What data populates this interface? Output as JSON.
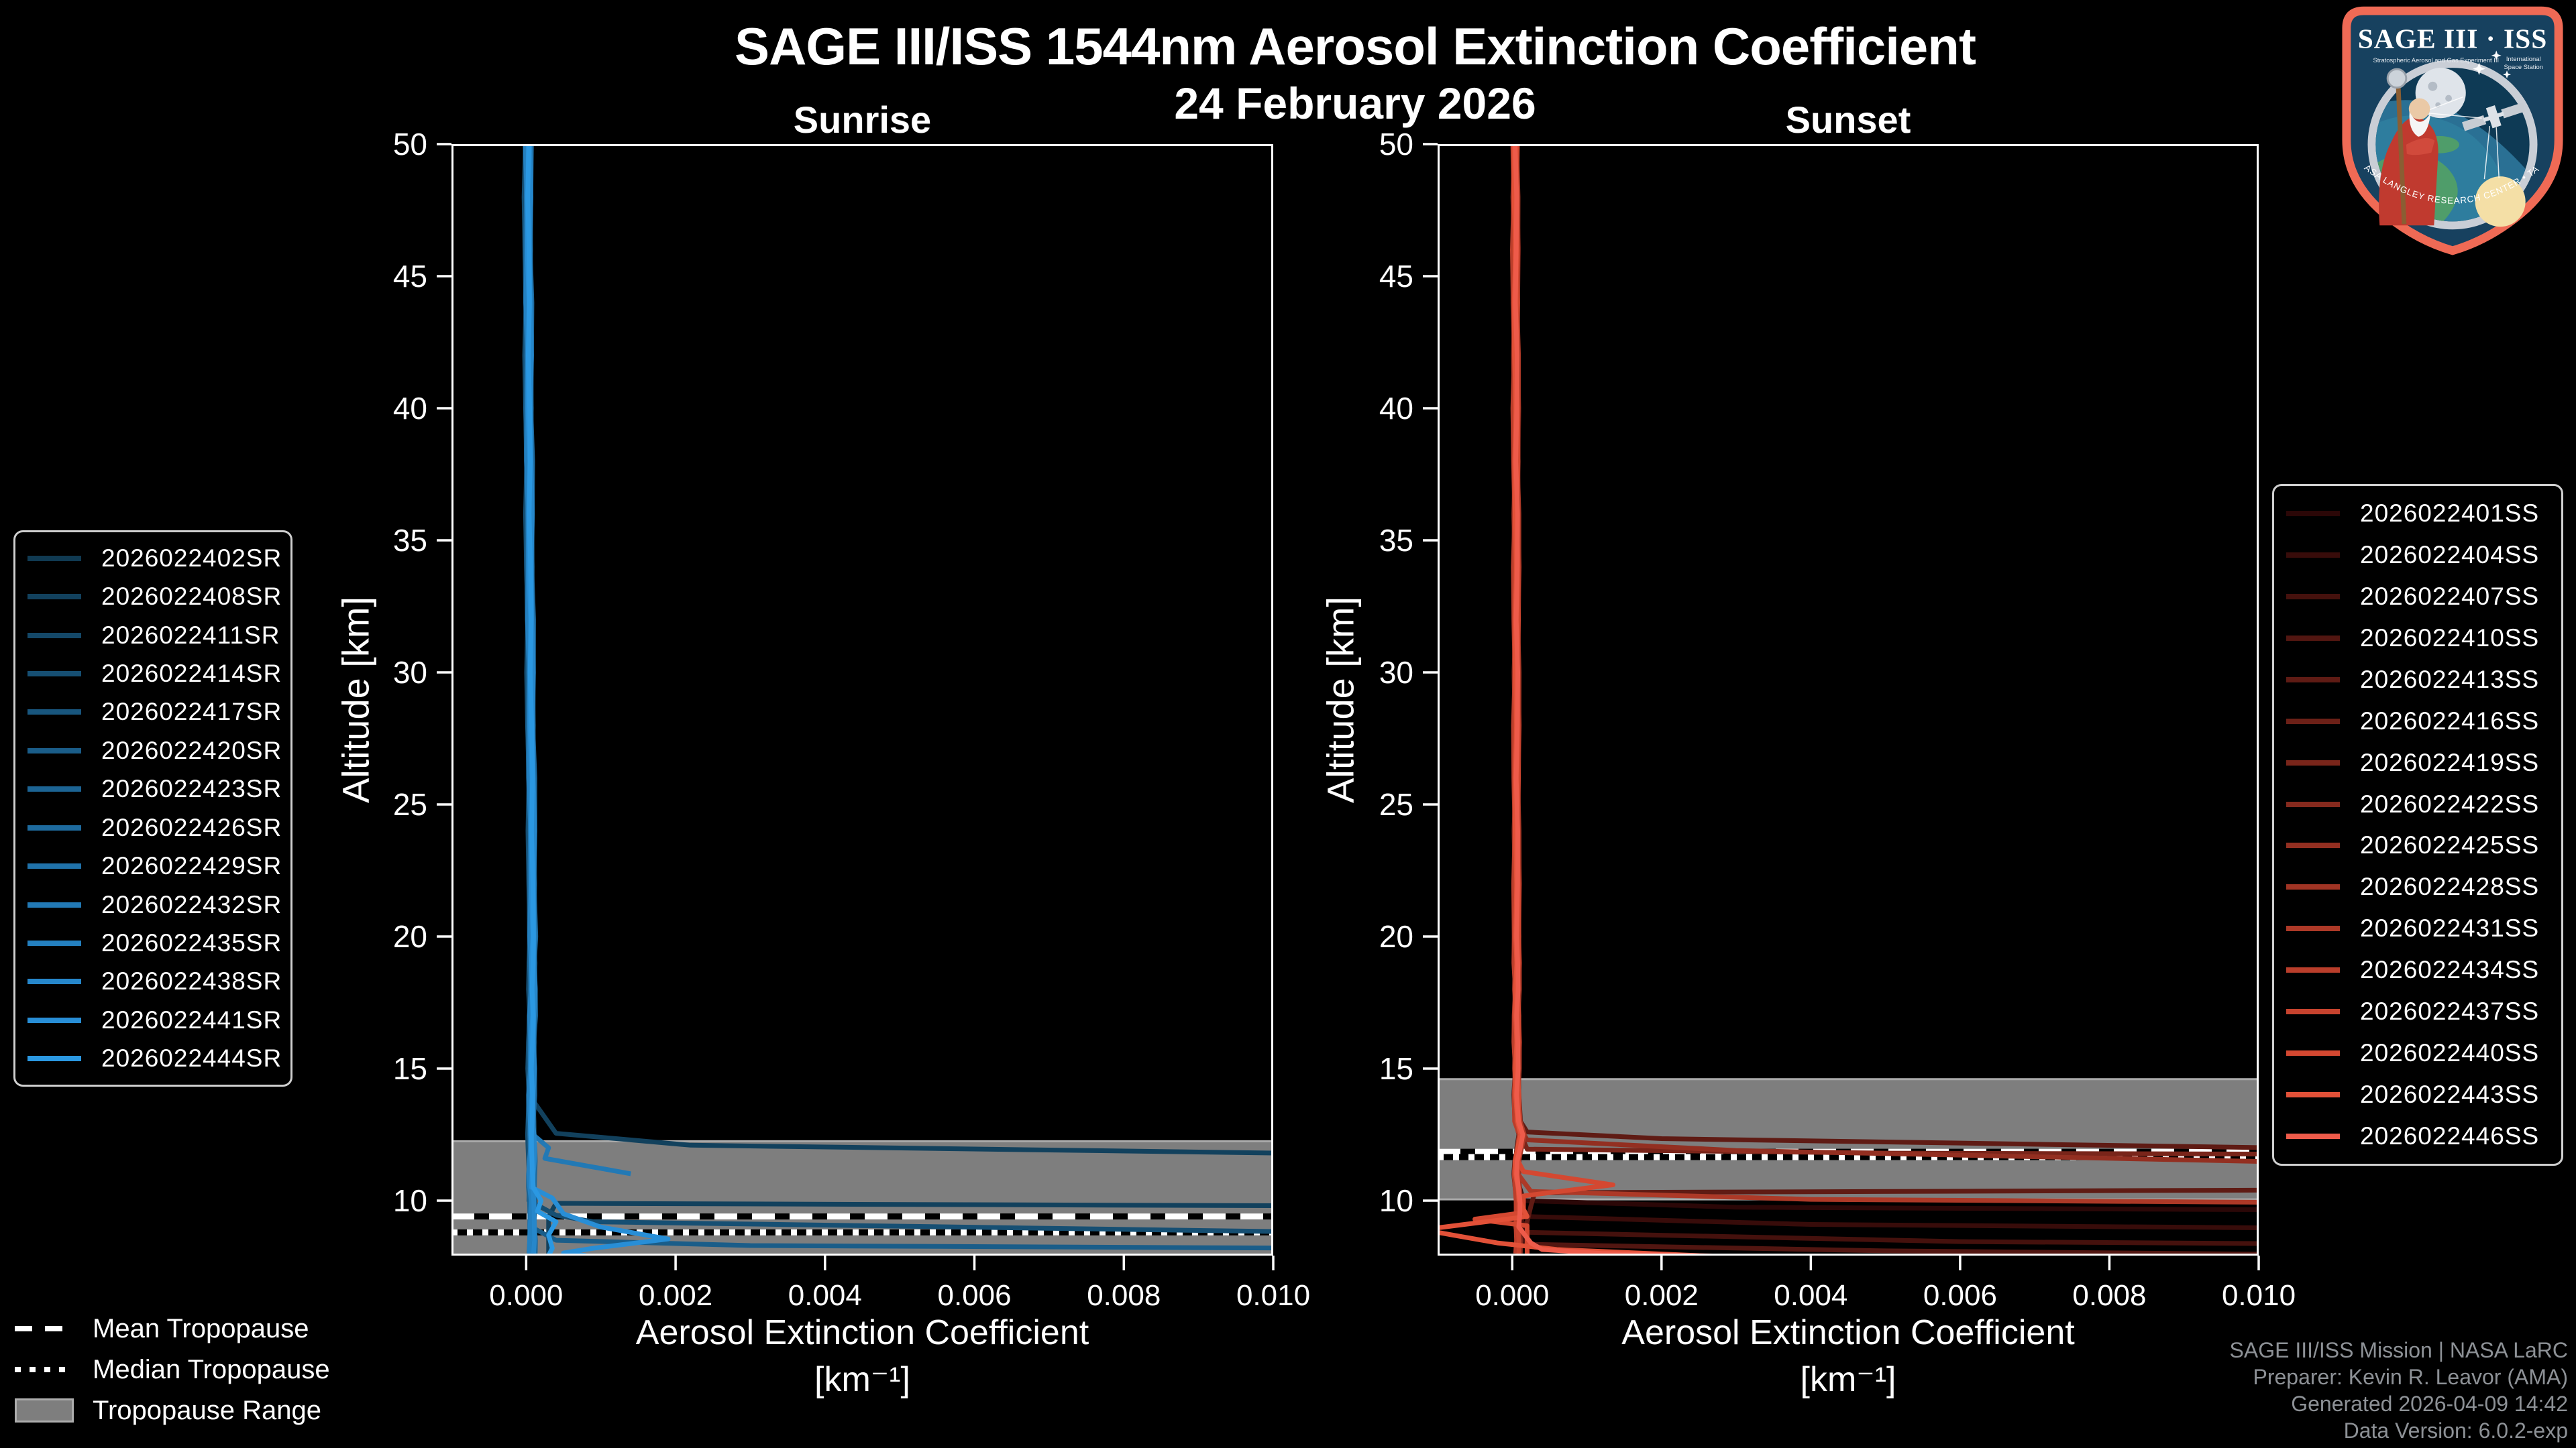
{
  "header": {
    "title": "SAGE III/ISS 1544nm Aerosol Extinction Coefficient",
    "date": "24 February 2026"
  },
  "chart_data": [
    {
      "type": "line",
      "panel": "sunrise",
      "title": "Sunrise",
      "xlabel_line1": "Aerosol Extinction Coefficient",
      "xlabel_line2": "[km⁻¹]",
      "ylabel": "Altitude [km]",
      "xlim": [
        -0.001,
        0.01
      ],
      "ylim": [
        7.92,
        50
      ],
      "grid": false,
      "legend_position": "outside-left",
      "xticks": [
        {
          "label": "0.000",
          "value": 0
        },
        {
          "label": "0.002",
          "value": 0.002
        },
        {
          "label": "0.004",
          "value": 0.004
        },
        {
          "label": "0.006",
          "value": 0.006
        },
        {
          "label": "0.008",
          "value": 0.008
        },
        {
          "label": "0.010",
          "value": 0.01
        }
      ],
      "yticks": [
        {
          "label": "50",
          "value": 50
        },
        {
          "label": "45",
          "value": 45
        },
        {
          "label": "40",
          "value": 40
        },
        {
          "label": "35",
          "value": 35
        },
        {
          "label": "30",
          "value": 30
        },
        {
          "label": "25",
          "value": 25
        },
        {
          "label": "20",
          "value": 20
        },
        {
          "label": "15",
          "value": 15
        },
        {
          "label": "10",
          "value": 10
        }
      ],
      "tropopause": {
        "mean_km": 9.4,
        "median_km": 8.8,
        "range_km": [
          7.92,
          12.25
        ]
      },
      "alt_grid": [
        50,
        48,
        46,
        44,
        42,
        40,
        38,
        36,
        34,
        32,
        30,
        28,
        26,
        24,
        22,
        20,
        19,
        18,
        17,
        16,
        15,
        14,
        13,
        12.5,
        12,
        11.5,
        11,
        10.5,
        10,
        9.5,
        9,
        8.5,
        8
      ],
      "base_ext_1e4": [
        0.2,
        0.22,
        0.24,
        0.27,
        0.3,
        0.33,
        0.37,
        0.41,
        0.45,
        0.5,
        0.55,
        0.6,
        0.67,
        0.73,
        0.77,
        0.8,
        0.8,
        0.8,
        0.77,
        0.73,
        0.7,
        0.67,
        0.67,
        0.7,
        0.73,
        0.7,
        0.67,
        0.73,
        0.8,
        0.73,
        0.67,
        0.73,
        0.73
      ],
      "series": [
        {
          "name": "2026022402SR",
          "color": "#103a52",
          "jitter": 3,
          "feature_below": null,
          "feature": null
        },
        {
          "name": "2026022408SR",
          "color": "#12415d",
          "jitter": -2,
          "feature_below": 13,
          "feature": [
            [
              0.0004,
              12.55
            ],
            [
              0.0022,
              12.1
            ],
            [
              0.022,
              11.35
            ],
            [
              0.022,
              9.7
            ],
            [
              0.0004,
              9.9
            ],
            [
              0.0003,
              9.4
            ],
            [
              0.0003,
              8.9
            ],
            [
              0.0003,
              8.4
            ],
            [
              0.0003,
              7.92
            ]
          ]
        },
        {
          "name": "2026022411SR",
          "color": "#144868",
          "jitter": 1,
          "feature_below": null,
          "feature": null
        },
        {
          "name": "2026022414SR",
          "color": "#164f73",
          "jitter": -4,
          "feature_below": 9.6,
          "feature": [
            [
              0.0004,
              9.45
            ],
            [
              0.0009,
              9.2
            ],
            [
              0.022,
              8.35
            ]
          ]
        },
        {
          "name": "2026022417SR",
          "color": "#18567e",
          "jitter": 2,
          "feature_below": null,
          "feature": null
        },
        {
          "name": "2026022420SR",
          "color": "#1a5d89",
          "jitter": 0,
          "feature_below": 8.6,
          "feature": [
            [
              0.0004,
              8.5
            ],
            [
              0.003,
              8.3
            ],
            [
              0.022,
              8.05
            ]
          ]
        },
        {
          "name": "2026022423SR",
          "color": "#1c6494",
          "jitter": -3,
          "feature_below": null,
          "feature": null
        },
        {
          "name": "2026022426SR",
          "color": "#1e6b9f",
          "jitter": 4,
          "feature_below": null,
          "feature": null
        },
        {
          "name": "2026022429SR",
          "color": "#2072aa",
          "jitter": -1,
          "feature_below": null,
          "feature": null
        },
        {
          "name": "2026022432SR",
          "color": "#2279b5",
          "jitter": 2,
          "feature_below": 12.2,
          "feature": [
            [
              0.0003,
              12.0
            ],
            [
              0.00025,
              11.6
            ],
            [
              0.0014,
              11.02
            ]
          ]
        },
        {
          "name": "2026022435SR",
          "color": "#2480c0",
          "jitter": -2,
          "feature_below": null,
          "feature": null
        },
        {
          "name": "2026022438SR",
          "color": "#2687cb",
          "jitter": 3,
          "feature_below": null,
          "feature": null
        },
        {
          "name": "2026022441SR",
          "color": "#288ed6",
          "jitter": 0,
          "feature_below": 10.3,
          "feature": [
            [
              0.00035,
              10.1
            ],
            [
              0.0005,
              9.5
            ],
            [
              0.001,
              9.0
            ],
            [
              0.0019,
              8.55
            ],
            [
              0.0009,
              8.2
            ],
            [
              0.0005,
              8.02
            ],
            [
              0.0008,
              7.92
            ]
          ]
        },
        {
          "name": "2026022444SR",
          "color": "#2b98e2",
          "jitter": 1,
          "feature_below": 10.3,
          "feature": [
            [
              0.0002,
              10.0
            ],
            [
              0.00015,
              9.6
            ],
            [
              0.0004,
              9.2
            ],
            [
              0.0003,
              8.7
            ],
            [
              0.00035,
              8.2
            ],
            [
              0.0003,
              7.92
            ]
          ]
        }
      ]
    },
    {
      "type": "line",
      "panel": "sunset",
      "title": "Sunset",
      "xlabel_line1": "Aerosol Extinction Coefficient",
      "xlabel_line2": "[km⁻¹]",
      "ylabel": "Altitude [km]",
      "xlim": [
        -0.001,
        0.01
      ],
      "ylim": [
        7.92,
        50
      ],
      "grid": false,
      "legend_position": "outside-right",
      "xticks": [
        {
          "label": "0.000",
          "value": 0
        },
        {
          "label": "0.002",
          "value": 0.002
        },
        {
          "label": "0.004",
          "value": 0.004
        },
        {
          "label": "0.006",
          "value": 0.006
        },
        {
          "label": "0.008",
          "value": 0.008
        },
        {
          "label": "0.010",
          "value": 0.01
        }
      ],
      "yticks": [
        {
          "label": "50",
          "value": 50
        },
        {
          "label": "45",
          "value": 45
        },
        {
          "label": "40",
          "value": 40
        },
        {
          "label": "35",
          "value": 35
        },
        {
          "label": "30",
          "value": 30
        },
        {
          "label": "25",
          "value": 25
        },
        {
          "label": "20",
          "value": 20
        },
        {
          "label": "15",
          "value": 15
        },
        {
          "label": "10",
          "value": 10
        }
      ],
      "tropopause": {
        "mean_km": 11.85,
        "median_km": 11.65,
        "range_km": [
          10.05,
          14.6
        ]
      },
      "alt_grid": [
        50,
        48,
        46,
        44,
        42,
        40,
        38,
        36,
        34,
        32,
        30,
        28,
        26,
        24,
        22,
        20,
        19,
        18,
        17,
        16,
        15,
        14,
        13,
        12.5,
        12,
        11.5,
        11,
        10.5,
        10,
        9.5,
        9,
        8.5,
        8
      ],
      "base_ext_1e4": [
        0.4,
        0.4,
        0.42,
        0.44,
        0.46,
        0.48,
        0.5,
        0.52,
        0.54,
        0.55,
        0.55,
        0.55,
        0.55,
        0.55,
        0.58,
        0.6,
        0.6,
        0.6,
        0.6,
        0.6,
        0.6,
        0.6,
        0.7,
        1.2,
        0.9,
        0.6,
        0.6,
        0.8,
        0.9,
        0.8,
        0.7,
        0.8,
        0.8
      ],
      "series": [
        {
          "name": "2026022401SS",
          "color": "#2b0707",
          "jitter": 2,
          "feature_below": 10.2,
          "feature": [
            [
              0.00015,
              10.0
            ],
            [
              0.003,
              9.75
            ],
            [
              0.022,
              9.5
            ]
          ]
        },
        {
          "name": "2026022404SS",
          "color": "#380c0a",
          "jitter": -3,
          "feature_below": 9.6,
          "feature": [
            [
              0.0002,
              9.4
            ],
            [
              0.004,
              9.1
            ],
            [
              0.022,
              8.72
            ]
          ]
        },
        {
          "name": "2026022407SS",
          "color": "#45110d",
          "jitter": 1,
          "feature_below": 9.0,
          "feature": [
            [
              0.0002,
              8.8
            ],
            [
              0.006,
              8.45
            ],
            [
              0.022,
              8.15
            ]
          ]
        },
        {
          "name": "2026022410SS",
          "color": "#521611",
          "jitter": -2,
          "feature_below": 8.5,
          "feature": [
            [
              0.0002,
              8.35
            ],
            [
              0.005,
              8.1
            ],
            [
              0.013,
              7.9
            ]
          ]
        },
        {
          "name": "2026022413SS",
          "color": "#5f1b14",
          "jitter": 3,
          "feature_below": 12.8,
          "feature": [
            [
              0.0002,
              12.6
            ],
            [
              0.002,
              12.35
            ],
            [
              0.022,
              11.5
            ],
            [
              0.022,
              10.52
            ],
            [
              0.0003,
              10.3
            ],
            [
              0.00025,
              9.8
            ],
            [
              0.0002,
              9.2
            ],
            [
              0.0002,
              8.6
            ],
            [
              0.0002,
              7.92
            ]
          ]
        },
        {
          "name": "2026022416SS",
          "color": "#6c2017",
          "jitter": 0,
          "feature_below": null,
          "feature": null
        },
        {
          "name": "2026022419SS",
          "color": "#79251a",
          "jitter": -1,
          "feature_below": 12.1,
          "feature": [
            [
              0.0002,
              11.95
            ],
            [
              0.005,
              11.8
            ],
            [
              0.022,
              11.68
            ]
          ]
        },
        {
          "name": "2026022422SS",
          "color": "#862a1e",
          "jitter": 2,
          "feature_below": null,
          "feature": null
        },
        {
          "name": "2026022425SS",
          "color": "#932f21",
          "jitter": -2,
          "feature_below": 12.5,
          "feature": [
            [
              0.0002,
              12.3
            ],
            [
              0.003,
              11.9
            ],
            [
              0.022,
              10.78
            ]
          ]
        },
        {
          "name": "2026022428SS",
          "color": "#a03424",
          "jitter": 1,
          "feature_below": null,
          "feature": null
        },
        {
          "name": "2026022431SS",
          "color": "#ad3927",
          "jitter": 3,
          "feature_below": 10.5,
          "feature": [
            [
              0.00025,
              10.35
            ],
            [
              0.004,
              10.05
            ],
            [
              0.022,
              9.72
            ]
          ]
        },
        {
          "name": "2026022434SS",
          "color": "#ba3e2b",
          "jitter": -3,
          "feature_below": null,
          "feature": null
        },
        {
          "name": "2026022437SS",
          "color": "#c7432e",
          "jitter": 0,
          "feature_below": null,
          "feature": null
        },
        {
          "name": "2026022440SS",
          "color": "#d44831",
          "jitter": 2,
          "feature_below": 11.3,
          "feature": [
            [
              0.00015,
              11.1
            ],
            [
              0.00135,
              10.6
            ],
            [
              0.00015,
              10.18
            ],
            [
              0.00015,
              9.55
            ],
            [
              -0.0005,
              9.3
            ],
            [
              0.0002,
              9.05
            ],
            [
              0.0002,
              8.5
            ],
            [
              0.0002,
              7.92
            ]
          ]
        },
        {
          "name": "2026022443SS",
          "color": "#e25138",
          "jitter": -1,
          "feature_below": 9.6,
          "feature": [
            [
              0.0002,
              9.4
            ],
            [
              -0.0012,
              8.9
            ],
            [
              -0.0002,
              8.4
            ],
            [
              0.0006,
              8.15
            ],
            [
              0.0025,
              7.92
            ]
          ]
        },
        {
          "name": "2026022446SS",
          "color": "#ee5b4a",
          "jitter": 1,
          "feature_below": 8.6,
          "feature": [
            [
              0.00025,
              8.4
            ],
            [
              0.0004,
              8.15
            ],
            [
              0.0012,
              8.0
            ],
            [
              0.0028,
              7.9
            ]
          ]
        }
      ]
    }
  ],
  "tropopause_legend": {
    "mean": "Mean Tropopause",
    "median": "Median Tropopause",
    "range": "Tropopause Range"
  },
  "credits": {
    "line1": "SAGE III/ISS Mission | NASA LaRC",
    "line2": "Preparer: Kevin R. Leavor (AMA)",
    "line3": "Generated 2026-04-09 14:42",
    "line4": "Data Version: 6.0.2-exp"
  },
  "logo": {
    "title": "SAGE III · ISS",
    "sub_left": "Stratospheric Aerosol and Gas Experiment III",
    "sub_right_1": "International",
    "sub_right_2": "Space Station",
    "arc": "BALL • NASA LANGLEY RESEARCH CENTER • TAS-I • ESA"
  },
  "colors": {
    "background": "#000000",
    "axis": "#ffffff",
    "tropopause_band": "#7e7e7e",
    "credit_text": "#8d9196",
    "sunrise_bright": "#2b98e2",
    "sunset_bright": "#ee5b4a"
  }
}
